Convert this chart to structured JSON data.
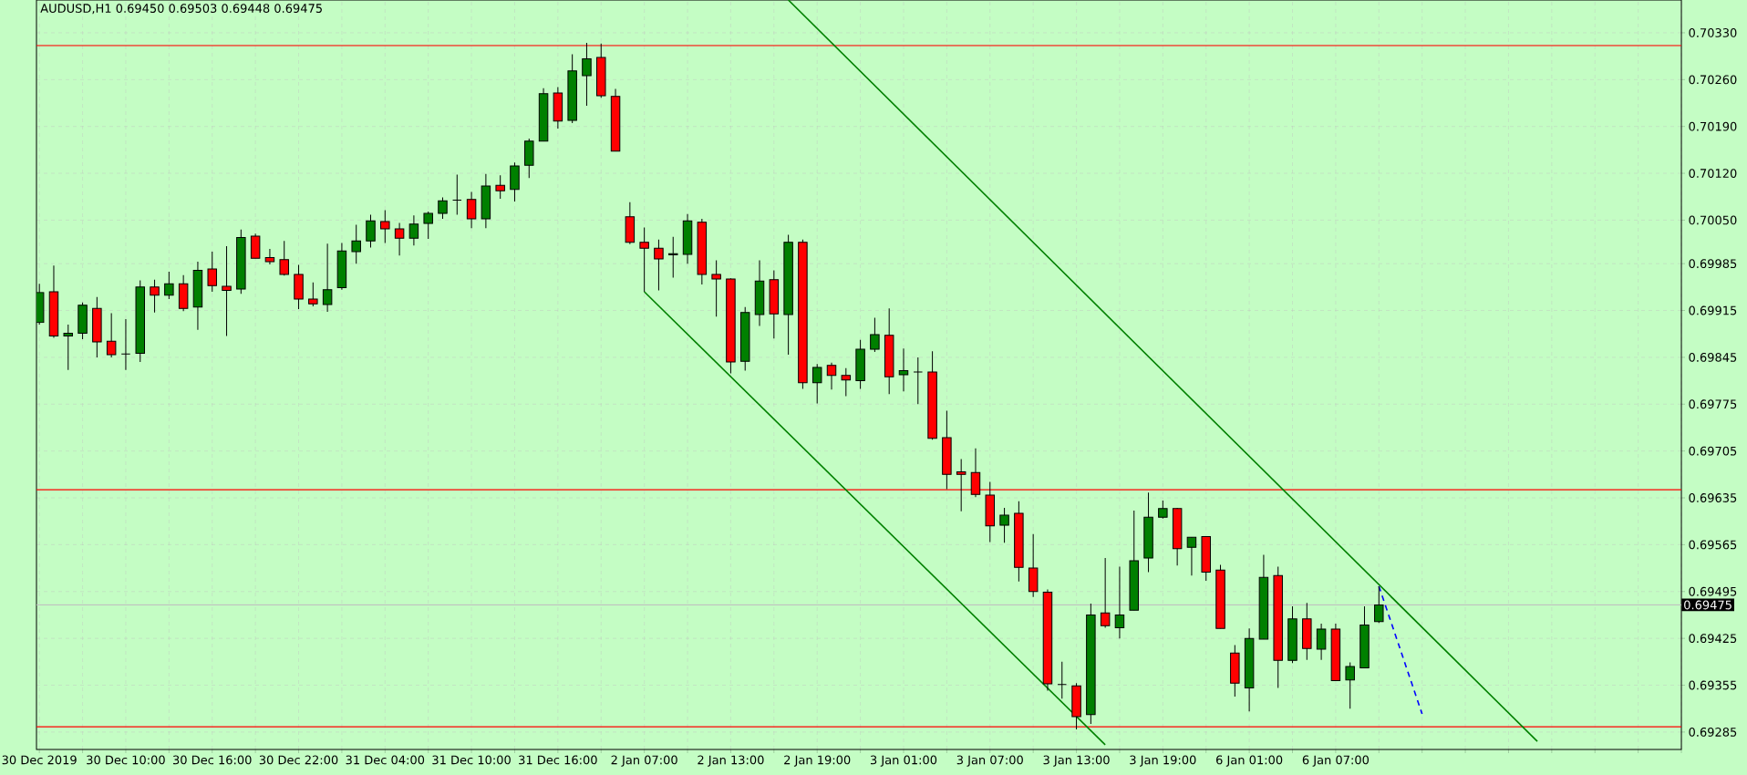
{
  "chart_data": {
    "type": "candlestick",
    "title": "AUDUSD,H1  0.69450 0.69503 0.69448 0.69475",
    "categories": [
      "30 Dec 2019",
      null,
      null,
      null,
      null,
      null,
      "30 Dec 10:00",
      null,
      null,
      null,
      null,
      null,
      "30 Dec 16:00",
      null,
      null,
      null,
      null,
      null,
      "30 Dec 22:00",
      null,
      null,
      null,
      null,
      null,
      "31 Dec 04:00",
      null,
      null,
      null,
      null,
      null,
      "31 Dec 10:00",
      null,
      null,
      null,
      null,
      null,
      "31 Dec 16:00",
      null,
      null,
      null,
      null,
      null,
      "2 Jan 07:00",
      null,
      null,
      null,
      null,
      null,
      "2 Jan 13:00",
      null,
      null,
      null,
      null,
      null,
      "2 Jan 19:00",
      null,
      null,
      null,
      null,
      null,
      "3 Jan 01:00",
      null,
      null,
      null,
      null,
      null,
      "3 Jan 07:00",
      null,
      null,
      null,
      null,
      null,
      "3 Jan 13:00",
      null,
      null,
      null,
      null,
      null,
      "3 Jan 19:00",
      null,
      null,
      null,
      null,
      null,
      "6 Jan 01:00",
      null,
      null,
      null,
      null,
      null,
      "6 Jan 07:00",
      null,
      null,
      null,
      null,
      null,
      null,
      null,
      null,
      null,
      null,
      null,
      null,
      null,
      null,
      null,
      null,
      null,
      null,
      null,
      null,
      null,
      null,
      null,
      null
    ],
    "ohlc": [
      [
        0.69897,
        0.69955,
        0.69894,
        0.69942
      ],
      [
        0.69943,
        0.69982,
        0.69874,
        0.69877
      ],
      [
        0.69877,
        0.69894,
        0.69826,
        0.69881
      ],
      [
        0.69881,
        0.69927,
        0.69872,
        0.69923
      ],
      [
        0.69918,
        0.69935,
        0.69845,
        0.69868
      ],
      [
        0.69869,
        0.69911,
        0.69845,
        0.69849
      ],
      [
        0.6985,
        0.69902,
        0.69826,
        0.6985
      ],
      [
        0.69851,
        0.6996,
        0.69838,
        0.6995
      ],
      [
        0.6995,
        0.69961,
        0.69912,
        0.69938
      ],
      [
        0.69938,
        0.69973,
        0.69932,
        0.69955
      ],
      [
        0.69955,
        0.69968,
        0.69914,
        0.69918
      ],
      [
        0.6992,
        0.69988,
        0.69886,
        0.69975
      ],
      [
        0.69977,
        0.70003,
        0.69943,
        0.69952
      ],
      [
        0.69951,
        0.70011,
        0.69877,
        0.69945
      ],
      [
        0.69947,
        0.70036,
        0.6994,
        0.70024
      ],
      [
        0.70026,
        0.7003,
        0.69993,
        0.69993
      ],
      [
        0.69994,
        0.70007,
        0.69984,
        0.69988
      ],
      [
        0.69991,
        0.70019,
        0.69967,
        0.69969
      ],
      [
        0.69969,
        0.69983,
        0.69917,
        0.69932
      ],
      [
        0.69932,
        0.69957,
        0.69921,
        0.69925
      ],
      [
        0.69924,
        0.70015,
        0.69913,
        0.69946
      ],
      [
        0.69949,
        0.70016,
        0.69946,
        0.70004
      ],
      [
        0.70003,
        0.70043,
        0.69985,
        0.70019
      ],
      [
        0.70019,
        0.70058,
        0.70009,
        0.70049
      ],
      [
        0.70048,
        0.70065,
        0.70016,
        0.70037
      ],
      [
        0.70037,
        0.70046,
        0.69997,
        0.70023
      ],
      [
        0.70023,
        0.70057,
        0.70012,
        0.70044
      ],
      [
        0.70045,
        0.70063,
        0.70022,
        0.7006
      ],
      [
        0.7006,
        0.70084,
        0.70052,
        0.70079
      ],
      [
        0.7008,
        0.70118,
        0.70058,
        0.7008
      ],
      [
        0.70081,
        0.70092,
        0.70038,
        0.70052
      ],
      [
        0.70052,
        0.70119,
        0.70038,
        0.70101
      ],
      [
        0.70102,
        0.70117,
        0.70082,
        0.70094
      ],
      [
        0.70096,
        0.70136,
        0.70078,
        0.70131
      ],
      [
        0.70132,
        0.70172,
        0.70113,
        0.70168
      ],
      [
        0.70168,
        0.70247,
        0.70168,
        0.70239
      ],
      [
        0.7024,
        0.70249,
        0.70187,
        0.70198
      ],
      [
        0.70199,
        0.70298,
        0.70195,
        0.70273
      ],
      [
        0.70266,
        0.70315,
        0.70221,
        0.70291
      ],
      [
        0.70293,
        0.70314,
        0.70233,
        0.70236
      ],
      [
        0.70235,
        0.70246,
        0.70153,
        0.70153
      ],
      [
        0.70055,
        0.70077,
        0.70014,
        0.70017
      ],
      [
        0.70017,
        0.70039,
        0.69943,
        0.70008
      ],
      [
        0.70008,
        0.70021,
        0.69945,
        0.69992
      ],
      [
        0.69998,
        0.70025,
        0.69964,
        0.7
      ],
      [
        0.69999,
        0.70059,
        0.69985,
        0.70049
      ],
      [
        0.70047,
        0.70052,
        0.69954,
        0.69969
      ],
      [
        0.69969,
        0.6999,
        0.69906,
        0.69962
      ],
      [
        0.69962,
        0.69963,
        0.69821,
        0.69838
      ],
      [
        0.69839,
        0.6992,
        0.69825,
        0.69912
      ],
      [
        0.69909,
        0.6999,
        0.69892,
        0.69959
      ],
      [
        0.69961,
        0.69975,
        0.69873,
        0.6991
      ],
      [
        0.69909,
        0.70028,
        0.69849,
        0.70017
      ],
      [
        0.70017,
        0.70021,
        0.69798,
        0.69807
      ],
      [
        0.69807,
        0.69835,
        0.69776,
        0.6983
      ],
      [
        0.69833,
        0.69837,
        0.69797,
        0.69818
      ],
      [
        0.69818,
        0.69829,
        0.69787,
        0.69811
      ],
      [
        0.6981,
        0.69871,
        0.69798,
        0.69857
      ],
      [
        0.69857,
        0.69904,
        0.69853,
        0.69879
      ],
      [
        0.69878,
        0.69918,
        0.6979,
        0.69816
      ],
      [
        0.69819,
        0.69858,
        0.69794,
        0.69825
      ],
      [
        0.69823,
        0.69845,
        0.69775,
        0.69823
      ],
      [
        0.69823,
        0.69854,
        0.69722,
        0.69724
      ],
      [
        0.69725,
        0.69765,
        0.69648,
        0.6967
      ],
      [
        0.69674,
        0.69693,
        0.69615,
        0.6967
      ],
      [
        0.69673,
        0.69709,
        0.69636,
        0.6964
      ],
      [
        0.69639,
        0.69659,
        0.69569,
        0.69593
      ],
      [
        0.69594,
        0.6962,
        0.69568,
        0.69609
      ],
      [
        0.69612,
        0.6963,
        0.6951,
        0.69531
      ],
      [
        0.6953,
        0.69581,
        0.69487,
        0.69495
      ],
      [
        0.69494,
        0.69498,
        0.69347,
        0.69357
      ],
      [
        0.69356,
        0.6939,
        0.69335,
        0.69356
      ],
      [
        0.69354,
        0.69358,
        0.69289,
        0.69308
      ],
      [
        0.69311,
        0.69477,
        0.69297,
        0.6946
      ],
      [
        0.69463,
        0.69545,
        0.69441,
        0.69444
      ],
      [
        0.69441,
        0.69532,
        0.69425,
        0.6946
      ],
      [
        0.69467,
        0.69616,
        0.69467,
        0.69541
      ],
      [
        0.69545,
        0.69643,
        0.69524,
        0.69606
      ],
      [
        0.69606,
        0.69631,
        0.69604,
        0.69619
      ],
      [
        0.69619,
        0.6962,
        0.69534,
        0.69559
      ],
      [
        0.69561,
        0.69576,
        0.69519,
        0.69576
      ],
      [
        0.69577,
        0.69577,
        0.69511,
        0.69524
      ],
      [
        0.69527,
        0.69535,
        0.6944,
        0.6944
      ],
      [
        0.69403,
        0.69415,
        0.69338,
        0.69358
      ],
      [
        0.69351,
        0.6944,
        0.69316,
        0.69425
      ],
      [
        0.69424,
        0.6955,
        0.69424,
        0.69516
      ],
      [
        0.69519,
        0.69532,
        0.69351,
        0.69392
      ],
      [
        0.69392,
        0.69473,
        0.69388,
        0.69454
      ],
      [
        0.69454,
        0.69478,
        0.69393,
        0.6941
      ],
      [
        0.69409,
        0.69447,
        0.69393,
        0.69439
      ],
      [
        0.69439,
        0.69447,
        0.69362,
        0.69362
      ],
      [
        0.69363,
        0.69389,
        0.6932,
        0.69383
      ],
      [
        0.69381,
        0.69473,
        0.69381,
        0.69445
      ],
      [
        0.6945,
        0.69503,
        0.69448,
        0.69475
      ],
      null,
      null,
      null,
      null,
      null,
      null,
      null,
      null,
      null,
      null,
      null,
      null,
      null,
      null,
      null,
      null,
      null,
      null,
      null,
      null,
      null
    ],
    "colors": [
      "#008000",
      "#ff0000",
      "#008000",
      "#008000",
      "#ff0000",
      "#ff0000",
      "#000000",
      "#008000",
      "#ff0000",
      "#008000",
      "#ff0000",
      "#008000",
      "#ff0000",
      "#ff0000",
      "#008000",
      "#ff0000",
      "#ff0000",
      "#ff0000",
      "#ff0000",
      "#ff0000",
      "#008000",
      "#008000",
      "#008000",
      "#008000",
      "#ff0000",
      "#ff0000",
      "#008000",
      "#008000",
      "#008000",
      "#000000",
      "#ff0000",
      "#008000",
      "#ff0000",
      "#008000",
      "#008000",
      "#008000",
      "#ff0000",
      "#008000",
      "#008000",
      "#ff0000",
      "#ff0000",
      "#ff0000",
      "#ff0000",
      "#ff0000",
      "#008000",
      "#008000",
      "#ff0000",
      "#ff0000",
      "#ff0000",
      "#008000",
      "#008000",
      "#ff0000",
      "#008000",
      "#ff0000",
      "#008000",
      "#ff0000",
      "#ff0000",
      "#008000",
      "#008000",
      "#ff0000",
      "#008000",
      "#000000",
      "#ff0000",
      "#ff0000",
      "#ff0000",
      "#ff0000",
      "#ff0000",
      "#008000",
      "#ff0000",
      "#ff0000",
      "#ff0000",
      "#000000",
      "#ff0000",
      "#008000",
      "#ff0000",
      "#008000",
      "#008000",
      "#008000",
      "#008000",
      "#ff0000",
      "#008000",
      "#ff0000",
      "#ff0000",
      "#ff0000",
      "#008000",
      "#008000",
      "#ff0000",
      "#008000",
      "#ff0000",
      "#008000",
      "#ff0000",
      "#008000",
      "#008000",
      "#008000",
      null,
      null,
      null,
      null,
      null,
      null,
      null,
      null,
      null,
      null,
      null,
      null,
      null,
      null,
      null,
      null,
      null,
      null,
      null,
      null,
      null
    ],
    "series": [
      {
        "type": "line",
        "color": "#008000",
        "values": [
          null,
          null,
          null,
          null,
          null,
          null,
          null,
          null,
          null,
          null,
          null,
          null,
          null,
          null,
          null,
          null,
          null,
          null,
          null,
          null,
          null,
          null,
          null,
          null,
          null,
          null,
          null,
          null,
          null,
          null,
          null,
          null,
          null,
          null,
          null,
          null,
          null,
          null,
          null,
          null,
          null,
          null,
          0.69943,
          null,
          null,
          null,
          null,
          null,
          null,
          null,
          null,
          null,
          null,
          null,
          null,
          null,
          null,
          null,
          null,
          null,
          null,
          null,
          null,
          null,
          null,
          null,
          null,
          null,
          null,
          null,
          null,
          null,
          null,
          null,
          0.69266,
          null,
          null,
          null,
          null,
          null,
          null,
          null,
          null,
          null,
          null,
          null,
          null,
          null,
          null,
          null,
          null,
          null,
          null,
          null,
          null,
          null,
          null,
          null,
          null,
          null,
          null,
          null,
          null,
          null,
          null,
          null,
          null,
          null,
          null,
          null,
          null,
          null,
          null,
          null,
          null
        ]
      },
      {
        "type": "line",
        "color": "#008000",
        "values": [
          null,
          null,
          null,
          null,
          null,
          null,
          null,
          null,
          null,
          null,
          null,
          null,
          null,
          null,
          null,
          null,
          null,
          null,
          null,
          null,
          null,
          null,
          null,
          null,
          null,
          null,
          null,
          null,
          null,
          null,
          null,
          null,
          null,
          null,
          null,
          null,
          null,
          null,
          null,
          null,
          null,
          null,
          null,
          null,
          null,
          null,
          null,
          null,
          null,
          null,
          null,
          null,
          0.70379,
          null,
          null,
          null,
          null,
          null,
          null,
          null,
          null,
          null,
          null,
          null,
          null,
          null,
          null,
          null,
          null,
          null,
          null,
          null,
          null,
          null,
          null,
          null,
          null,
          null,
          null,
          null,
          null,
          null,
          null,
          null,
          null,
          null,
          null,
          null,
          null,
          null,
          null,
          null,
          null,
          null,
          null,
          null,
          null,
          null,
          null,
          null,
          null,
          null,
          null,
          null,
          0.69271,
          null,
          null,
          null,
          null,
          null,
          null,
          null,
          null,
          null,
          null
        ]
      },
      {
        "type": "line",
        "color": "#0000ff",
        "line_style": "dashed",
        "values": [
          null,
          null,
          null,
          null,
          null,
          null,
          null,
          null,
          null,
          null,
          null,
          null,
          null,
          null,
          null,
          null,
          null,
          null,
          null,
          null,
          null,
          null,
          null,
          null,
          null,
          null,
          null,
          null,
          null,
          null,
          null,
          null,
          null,
          null,
          null,
          null,
          null,
          null,
          null,
          null,
          null,
          null,
          null,
          null,
          null,
          null,
          null,
          null,
          null,
          null,
          null,
          null,
          null,
          null,
          null,
          null,
          null,
          null,
          null,
          null,
          null,
          null,
          null,
          null,
          null,
          null,
          null,
          null,
          null,
          null,
          null,
          null,
          null,
          null,
          null,
          null,
          null,
          null,
          null,
          null,
          null,
          null,
          null,
          null,
          null,
          null,
          null,
          null,
          null,
          null,
          null,
          null,
          null,
          0.69503,
          null,
          null,
          0.69312,
          null,
          null,
          null,
          null,
          null,
          null,
          null,
          null,
          null,
          null,
          null,
          null,
          null,
          null,
          null,
          null,
          null,
          null
        ]
      }
    ],
    "ref_lines": [
      {
        "axis": "y",
        "value": 0.70311,
        "color": "#ff0000"
      },
      {
        "axis": "y",
        "value": 0.69647,
        "color": "#ff0000"
      },
      {
        "axis": "y",
        "value": 0.69293,
        "color": "#ff0000"
      },
      {
        "axis": "y",
        "value": 0.69475,
        "color": "#c0c0c0",
        "label": "0.69475"
      }
    ],
    "ylim": [
      0.69259,
      0.70379
    ],
    "yticks": [
      {
        "value": 0.7033,
        "label": "0.70330"
      },
      {
        "value": 0.7026,
        "label": "0.70260"
      },
      {
        "value": 0.7019,
        "label": "0.70190"
      },
      {
        "value": 0.7012,
        "label": "0.70120"
      },
      {
        "value": 0.7005,
        "label": "0.70050"
      },
      0.69985,
      0.69915,
      0.69845,
      0.69775,
      0.69705,
      0.69635,
      0.69565,
      0.69495,
      0.69425,
      0.69355,
      0.69285
    ],
    "grid": true
  }
}
